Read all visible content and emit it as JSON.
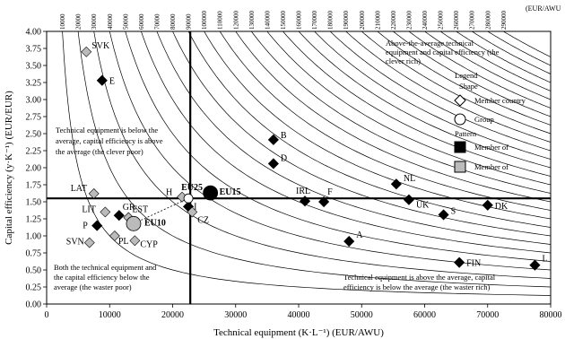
{
  "chart_data": {
    "type": "scatter",
    "title": "",
    "xlabel": "Technical equipment (K·L⁻¹) (EUR/AWU)",
    "ylabel": "Capital efficiency (y·K⁻¹) (EUR/EUR)",
    "top_unit_label": "(EUR/AWU",
    "xlim": [
      0,
      80000
    ],
    "ylim": [
      0,
      4
    ],
    "x_ticks": [
      "0",
      "10000",
      "20000",
      "30000",
      "40000",
      "50000",
      "60000",
      "70000",
      "80000"
    ],
    "y_ticks": [
      "0.00",
      "0.25",
      "0.50",
      "0.75",
      "1.00",
      "1.25",
      "1.50",
      "1.75",
      "2.00",
      "2.25",
      "2.50",
      "2.75",
      "3.00",
      "3.25",
      "3.50",
      "3.75",
      "4.00"
    ],
    "isoquant_labels": [
      "10000",
      "20000",
      "30000",
      "40000",
      "50000",
      "60000",
      "70000",
      "80000",
      "90000",
      "100000",
      "110000",
      "120000",
      "130000",
      "140000",
      "150000",
      "160000",
      "170000",
      "180000",
      "190000",
      "200000",
      "210000",
      "220000",
      "230000",
      "240000",
      "250000",
      "260000",
      "270000",
      "280000",
      "290000"
    ],
    "average_lines": {
      "x": 22800,
      "y": 1.55
    },
    "series": [
      {
        "name": "Member country",
        "marker": "diamond",
        "points": [
          {
            "label": "SVK",
            "x": 6300,
            "y": 3.7,
            "fill": "#bbbbbb"
          },
          {
            "label": "E",
            "x": 8800,
            "y": 3.28,
            "fill": "#000000"
          },
          {
            "label": "LAT",
            "x": 7500,
            "y": 1.62,
            "fill": "#bbbbbb"
          },
          {
            "label": "LIT",
            "x": 9300,
            "y": 1.35,
            "fill": "#bbbbbb"
          },
          {
            "label": "P",
            "x": 8000,
            "y": 1.15,
            "fill": "#000000"
          },
          {
            "label": "GR",
            "x": 11500,
            "y": 1.3,
            "fill": "#000000"
          },
          {
            "label": "EST",
            "x": 13000,
            "y": 1.27,
            "fill": "#bbbbbb"
          },
          {
            "label": "SVN",
            "x": 6800,
            "y": 0.9,
            "fill": "#bbbbbb"
          },
          {
            "label": "PL",
            "x": 10800,
            "y": 1.0,
            "fill": "#bbbbbb"
          },
          {
            "label": "CYP",
            "x": 14000,
            "y": 0.93,
            "fill": "#bbbbbb"
          },
          {
            "label": "H",
            "x": 21500,
            "y": 1.57,
            "fill": "#bbbbbb"
          },
          {
            "label": "I",
            "x": 22500,
            "y": 1.43,
            "fill": "#000000"
          },
          {
            "label": "CZ",
            "x": 23100,
            "y": 1.35,
            "fill": "#bbbbbb"
          },
          {
            "label": "B",
            "x": 36000,
            "y": 2.41,
            "fill": "#000000"
          },
          {
            "label": "D",
            "x": 36000,
            "y": 2.06,
            "fill": "#000000"
          },
          {
            "label": "IRL",
            "x": 41000,
            "y": 1.51,
            "fill": "#000000"
          },
          {
            "label": "F",
            "x": 44000,
            "y": 1.5,
            "fill": "#000000"
          },
          {
            "label": "NL",
            "x": 55500,
            "y": 1.76,
            "fill": "#000000"
          },
          {
            "label": "UK",
            "x": 57500,
            "y": 1.53,
            "fill": "#000000"
          },
          {
            "label": "S",
            "x": 63000,
            "y": 1.31,
            "fill": "#000000"
          },
          {
            "label": "DK",
            "x": 70000,
            "y": 1.45,
            "fill": "#000000"
          },
          {
            "label": "A",
            "x": 48000,
            "y": 0.92,
            "fill": "#000000"
          },
          {
            "label": "FIN",
            "x": 65500,
            "y": 0.61,
            "fill": "#000000"
          },
          {
            "label": "L",
            "x": 77500,
            "y": 0.57,
            "fill": "#000000"
          }
        ]
      },
      {
        "name": "Group",
        "marker": "circle",
        "points": [
          {
            "label": "EU25",
            "x": 22500,
            "y": 1.55,
            "fill": "#ffffff",
            "r": 5
          },
          {
            "label": "EU15",
            "x": 26000,
            "y": 1.63,
            "fill": "#000000",
            "r": 8
          },
          {
            "label": "EU10",
            "x": 13800,
            "y": 1.18,
            "fill": "#bbbbbb",
            "r": 8
          }
        ]
      }
    ],
    "legend": {
      "position": "top-right",
      "title": "Legend",
      "shape_title": "Shape",
      "member_country": "Member country",
      "group": "Group",
      "pattern_title": "Pattern",
      "member_of_1": "Member of",
      "member_of_2": "Member of",
      "color_1": "#000000",
      "color_2": "#bbbbbb"
    },
    "annotations": {
      "quad_top_right": [
        "Above-the-average technical",
        "equipment and capital efficiency (the",
        "clever rich)"
      ],
      "quad_top_left": [
        "Technical equipment is below the",
        "average, capital efficiency is above",
        "the average (the clever poor)"
      ],
      "quad_bottom_left": [
        "Both the technical equipment and",
        "the capital efficiency below the",
        "average (the waster poor)"
      ],
      "quad_bottom_right": [
        "Technical equipment is above the average, capital",
        "efficiency is below the average (the waster rich)"
      ]
    },
    "grid": false
  }
}
